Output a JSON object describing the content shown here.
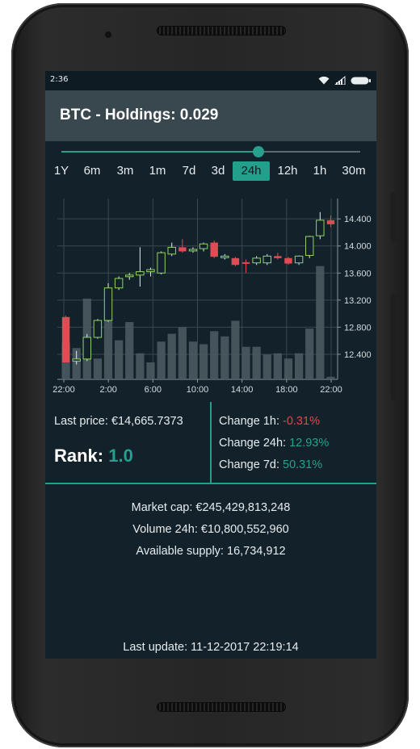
{
  "status_bar": {
    "time": "2:36",
    "icons": [
      "wifi-icon",
      "signal-icon",
      "battery-icon"
    ]
  },
  "header": {
    "title": "BTC - Holdings: 0.029"
  },
  "range_slider": {
    "position_fraction": 0.66
  },
  "ranges": {
    "items": [
      "1Y",
      "6m",
      "3m",
      "1m",
      "7d",
      "3d",
      "24h",
      "12h",
      "1h",
      "30m"
    ],
    "selected": "24h"
  },
  "chart_data": {
    "type": "candlestick",
    "x_tick_labels": [
      "22:00",
      "2:00",
      "6:00",
      "10:00",
      "14:00",
      "18:00",
      "22:00"
    ],
    "y_tick_labels": [
      "12.400",
      "12.800",
      "13.200",
      "13.600",
      "14.000",
      "14.400"
    ],
    "ylim": [
      12.03,
      14.7
    ],
    "candles": [
      {
        "open": 12.95,
        "high": 12.97,
        "low": 12.28,
        "close": 12.28
      },
      {
        "open": 12.3,
        "high": 12.45,
        "low": 12.25,
        "close": 12.33
      },
      {
        "open": 12.33,
        "high": 12.7,
        "low": 12.3,
        "close": 12.65
      },
      {
        "open": 12.65,
        "high": 12.92,
        "low": 12.63,
        "close": 12.9
      },
      {
        "open": 12.9,
        "high": 13.45,
        "low": 12.88,
        "close": 13.38
      },
      {
        "open": 13.38,
        "high": 13.55,
        "low": 13.35,
        "close": 13.52
      },
      {
        "open": 13.55,
        "high": 13.6,
        "low": 13.5,
        "close": 13.57
      },
      {
        "open": 13.57,
        "high": 13.98,
        "low": 13.4,
        "close": 13.62
      },
      {
        "open": 13.62,
        "high": 13.68,
        "low": 13.55,
        "close": 13.65
      },
      {
        "open": 13.6,
        "high": 13.92,
        "low": 13.58,
        "close": 13.9
      },
      {
        "open": 13.88,
        "high": 14.05,
        "low": 13.85,
        "close": 13.98
      },
      {
        "open": 13.98,
        "high": 14.1,
        "low": 13.9,
        "close": 13.92
      },
      {
        "open": 13.93,
        "high": 13.98,
        "low": 13.9,
        "close": 13.95
      },
      {
        "open": 13.96,
        "high": 14.05,
        "low": 13.92,
        "close": 14.03
      },
      {
        "open": 14.05,
        "high": 14.08,
        "low": 13.82,
        "close": 13.84
      },
      {
        "open": 13.83,
        "high": 13.88,
        "low": 13.8,
        "close": 13.85
      },
      {
        "open": 13.82,
        "high": 13.84,
        "low": 13.7,
        "close": 13.72
      },
      {
        "open": 13.76,
        "high": 13.8,
        "low": 13.6,
        "close": 13.75
      },
      {
        "open": 13.75,
        "high": 13.85,
        "low": 13.72,
        "close": 13.82
      },
      {
        "open": 13.75,
        "high": 13.88,
        "low": 13.72,
        "close": 13.85
      },
      {
        "open": 13.85,
        "high": 13.9,
        "low": 13.8,
        "close": 13.82
      },
      {
        "open": 13.82,
        "high": 13.84,
        "low": 13.72,
        "close": 13.74
      },
      {
        "open": 13.75,
        "high": 13.86,
        "low": 13.72,
        "close": 13.85
      },
      {
        "open": 13.86,
        "high": 14.15,
        "low": 13.82,
        "close": 14.14
      },
      {
        "open": 14.15,
        "high": 14.5,
        "low": 14.1,
        "close": 14.38
      },
      {
        "open": 14.38,
        "high": 14.45,
        "low": 14.28,
        "close": 14.32
      }
    ],
    "volume": [
      0.28,
      0.24,
      0.62,
      0.16,
      0.48,
      0.3,
      0.44,
      0.2,
      0.13,
      0.29,
      0.35,
      0.4,
      0.29,
      0.27,
      0.37,
      0.33,
      0.45,
      0.25,
      0.25,
      0.19,
      0.2,
      0.16,
      0.2,
      0.39,
      0.87,
      0.02
    ],
    "bull_color": "#8fd36a",
    "bear_color": "#e14b55",
    "volume_color": "#4b5960",
    "grid": true
  },
  "stats": {
    "last_price_label": "Last price:",
    "last_price_value": "€14,665.7373",
    "rank_label": "Rank:",
    "rank_value": "1.0",
    "change_1h_label": "Change 1h:",
    "change_1h_value": "-0.31%",
    "change_24h_label": "Change 24h:",
    "change_24h_value": "12.93%",
    "change_7d_label": "Change 7d:",
    "change_7d_value": "50.31%"
  },
  "market": {
    "market_cap_label": "Market cap:",
    "market_cap_value": "€245,429,813,248",
    "volume_24h_label": "Volume 24h:",
    "volume_24h_value": "€10,800,552,960",
    "supply_label": "Available supply:",
    "supply_value": "16,734,912"
  },
  "footer": {
    "last_update_label": "Last update:",
    "last_update_value": "11-12-2017 22:19:14"
  },
  "colors": {
    "accent": "#23a08c",
    "negative": "#e0474c",
    "background": "#13212a",
    "header": "#39474f"
  }
}
